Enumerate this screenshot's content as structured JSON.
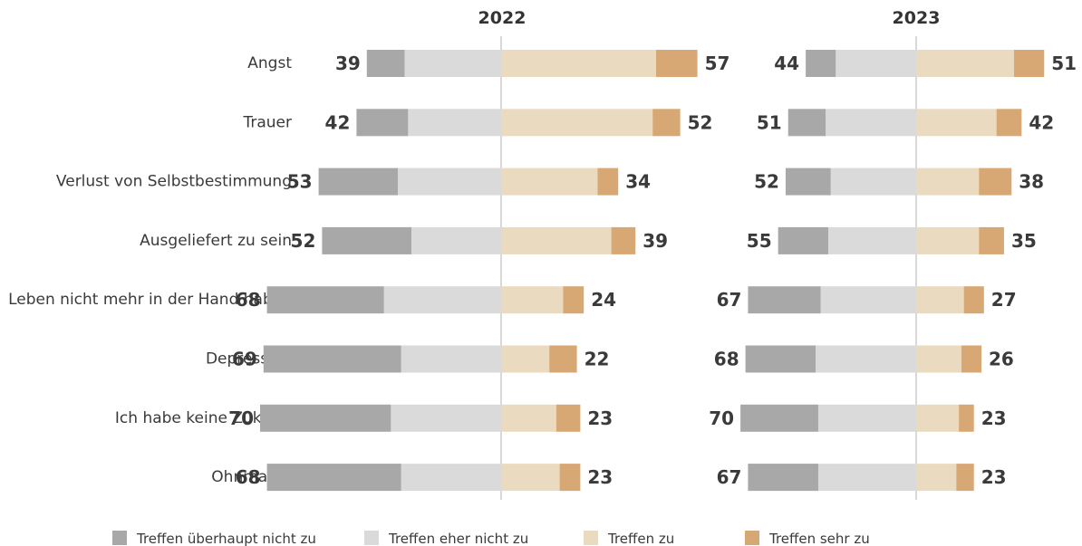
{
  "chart_data": {
    "type": "bar",
    "orientation": "horizontal-diverging",
    "categories": [
      "Angst",
      "Trauer",
      "Verlust von Selbstbestimmung",
      "Ausgeliefert zu sein",
      "Leben nicht mehr in der Hand haben",
      "Depression",
      "Ich habe keine Zukunft",
      "Ohnmacht"
    ],
    "series_names": [
      "Treffen überhaupt nicht zu",
      "Treffen eher nicht zu",
      "Treffen zu",
      "Treffen sehr zu"
    ],
    "colors": [
      "#a8a8a8",
      "#dadada",
      "#eadbc0",
      "#d8a874"
    ],
    "panels": [
      {
        "year": "2022",
        "rows": [
          {
            "ueberhaupt_nicht": 11,
            "eher_nicht": 28,
            "zu": 45,
            "sehr": 12,
            "neg_total": 39,
            "pos_total": 57
          },
          {
            "ueberhaupt_nicht": 15,
            "eher_nicht": 27,
            "zu": 44,
            "sehr": 8,
            "neg_total": 42,
            "pos_total": 52
          },
          {
            "ueberhaupt_nicht": 23,
            "eher_nicht": 30,
            "zu": 28,
            "sehr": 6,
            "neg_total": 53,
            "pos_total": 34
          },
          {
            "ueberhaupt_nicht": 26,
            "eher_nicht": 26,
            "zu": 32,
            "sehr": 7,
            "neg_total": 52,
            "pos_total": 39
          },
          {
            "ueberhaupt_nicht": 34,
            "eher_nicht": 34,
            "zu": 18,
            "sehr": 6,
            "neg_total": 68,
            "pos_total": 24
          },
          {
            "ueberhaupt_nicht": 40,
            "eher_nicht": 29,
            "zu": 14,
            "sehr": 8,
            "neg_total": 69,
            "pos_total": 22
          },
          {
            "ueberhaupt_nicht": 38,
            "eher_nicht": 32,
            "zu": 16,
            "sehr": 7,
            "neg_total": 70,
            "pos_total": 23
          },
          {
            "ueberhaupt_nicht": 39,
            "eher_nicht": 29,
            "zu": 17,
            "sehr": 6,
            "neg_total": 68,
            "pos_total": 23
          }
        ]
      },
      {
        "year": "2023",
        "rows": [
          {
            "ueberhaupt_nicht": 12,
            "eher_nicht": 32,
            "zu": 39,
            "sehr": 12,
            "neg_total": 44,
            "pos_total": 51
          },
          {
            "ueberhaupt_nicht": 15,
            "eher_nicht": 36,
            "zu": 32,
            "sehr": 10,
            "neg_total": 51,
            "pos_total": 42
          },
          {
            "ueberhaupt_nicht": 18,
            "eher_nicht": 34,
            "zu": 25,
            "sehr": 13,
            "neg_total": 52,
            "pos_total": 38
          },
          {
            "ueberhaupt_nicht": 20,
            "eher_nicht": 35,
            "zu": 25,
            "sehr": 10,
            "neg_total": 55,
            "pos_total": 35
          },
          {
            "ueberhaupt_nicht": 29,
            "eher_nicht": 38,
            "zu": 19,
            "sehr": 8,
            "neg_total": 67,
            "pos_total": 27
          },
          {
            "ueberhaupt_nicht": 28,
            "eher_nicht": 40,
            "zu": 18,
            "sehr": 8,
            "neg_total": 68,
            "pos_total": 26
          },
          {
            "ueberhaupt_nicht": 31,
            "eher_nicht": 39,
            "zu": 17,
            "sehr": 6,
            "neg_total": 70,
            "pos_total": 23
          },
          {
            "ueberhaupt_nicht": 28,
            "eher_nicht": 39,
            "zu": 16,
            "sehr": 7,
            "neg_total": 67,
            "pos_total": 23
          }
        ]
      }
    ],
    "title": "",
    "xlabel": "",
    "ylabel": "",
    "legend_position": "bottom",
    "grid": false
  }
}
